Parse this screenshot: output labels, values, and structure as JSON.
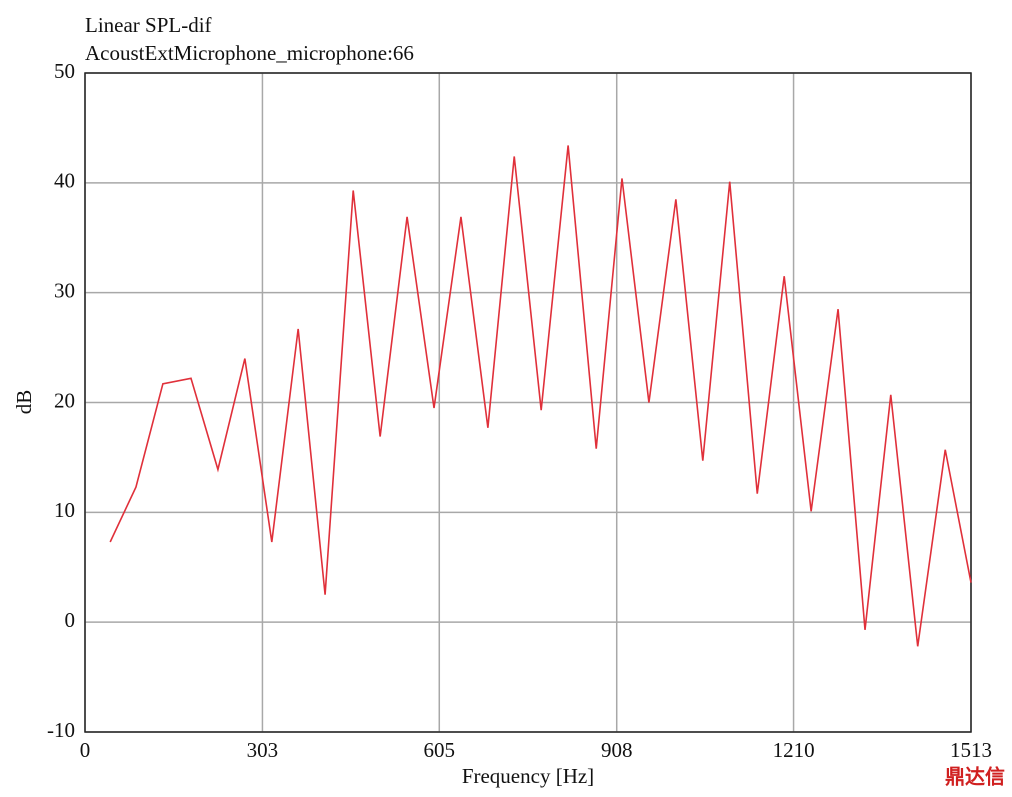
{
  "chart_data": {
    "type": "line",
    "title": "Linear SPL-dif",
    "subtitle": "AcoustExtMicrophone_microphone:66",
    "x_label": "Frequency [Hz]",
    "y_label": "dB",
    "watermark": "鼎达信",
    "x": [
      43,
      87,
      133,
      181,
      227,
      273,
      319,
      364,
      410,
      458,
      504,
      550,
      596,
      642,
      688,
      733,
      779,
      825,
      873,
      917,
      963,
      1009,
      1055,
      1101,
      1148,
      1194,
      1240,
      1286,
      1332,
      1376,
      1422,
      1469,
      1513
    ],
    "series": [
      {
        "name": "SPL-dif",
        "color": "#e0303a",
        "values": [
          7.3,
          12.3,
          21.7,
          22.2,
          13.9,
          24.0,
          7.3,
          26.7,
          2.5,
          39.3,
          16.9,
          36.9,
          19.5,
          36.9,
          17.7,
          42.4,
          19.3,
          43.4,
          15.8,
          40.4,
          20.0,
          38.5,
          14.7,
          40.1,
          11.7,
          31.5,
          10.1,
          28.5,
          -0.7,
          20.7,
          -2.2,
          15.7,
          3.6
        ]
      }
    ],
    "xlim": [
      0,
      1513
    ],
    "xticks": [
      0,
      303,
      605,
      908,
      1210,
      1513
    ],
    "ylim": [
      -10,
      50
    ],
    "yticks": [
      -10,
      0,
      10,
      20,
      30,
      40,
      50
    ],
    "grid": true
  }
}
